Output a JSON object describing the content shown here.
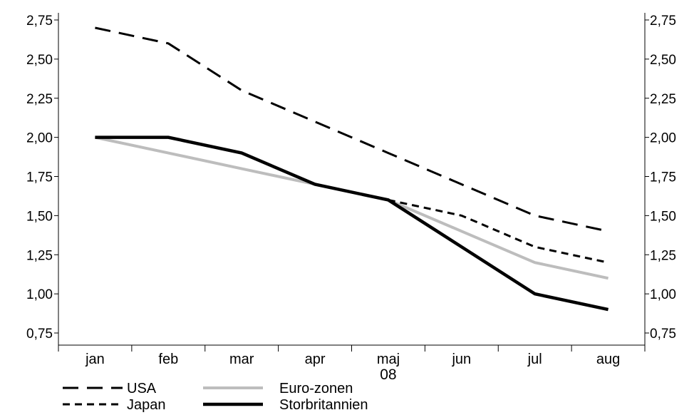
{
  "chart_data": {
    "type": "line",
    "title": "",
    "xlabel": "08",
    "ylabel": "",
    "categories": [
      "jan",
      "feb",
      "mar",
      "apr",
      "maj",
      "jun",
      "jul",
      "aug"
    ],
    "ylim": [
      0.75,
      2.75
    ],
    "yticks": [
      0.75,
      1.0,
      1.25,
      1.5,
      1.75,
      2.0,
      2.25,
      2.5,
      2.75
    ],
    "ytick_labels": [
      "0,75",
      "1,00",
      "1,25",
      "1,50",
      "1,75",
      "2,00",
      "2,25",
      "2,50",
      "2,75"
    ],
    "dual_y_axis": true,
    "grid": false,
    "legend_position": "bottom-left",
    "series": [
      {
        "name": "USA",
        "values": [
          2.7,
          2.6,
          2.3,
          2.1,
          1.9,
          1.7,
          1.5,
          1.4
        ],
        "color": "#000000",
        "style": "long-dash"
      },
      {
        "name": "Euro-zonen",
        "values": [
          2.0,
          1.9,
          1.8,
          1.7,
          1.6,
          1.4,
          1.2,
          1.1
        ],
        "color": "#bdbdbd",
        "style": "solid"
      },
      {
        "name": "Japan",
        "values": [
          2.0,
          2.0,
          1.9,
          1.7,
          1.6,
          1.5,
          1.3,
          1.2
        ],
        "color": "#000000",
        "style": "short-dash"
      },
      {
        "name": "Storbritannien",
        "values": [
          2.0,
          2.0,
          1.9,
          1.7,
          1.6,
          1.3,
          1.0,
          0.9
        ],
        "color": "#000000",
        "style": "solid-thick"
      }
    ]
  }
}
